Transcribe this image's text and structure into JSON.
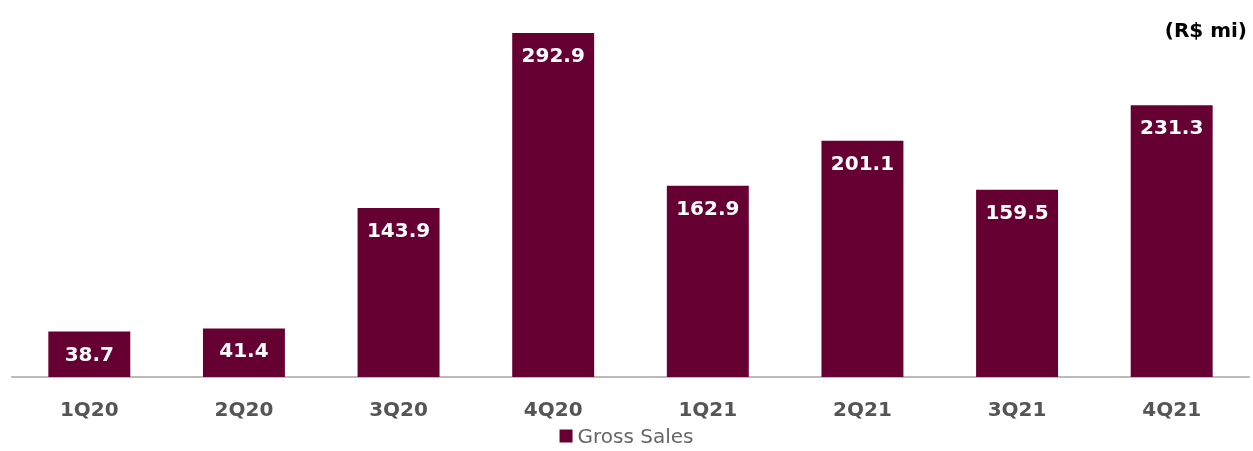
{
  "chart_data": {
    "type": "bar",
    "categories": [
      "1Q20",
      "2Q20",
      "3Q20",
      "4Q20",
      "1Q21",
      "2Q21",
      "3Q21",
      "4Q21"
    ],
    "series": [
      {
        "name": "Gross Sales",
        "color": "#660033",
        "values": [
          38.7,
          41.4,
          143.9,
          292.9,
          162.9,
          201.1,
          159.5,
          231.3
        ]
      }
    ],
    "data_labels": true,
    "legend": "bottom",
    "annotations": [
      "(R$ mi)"
    ]
  }
}
